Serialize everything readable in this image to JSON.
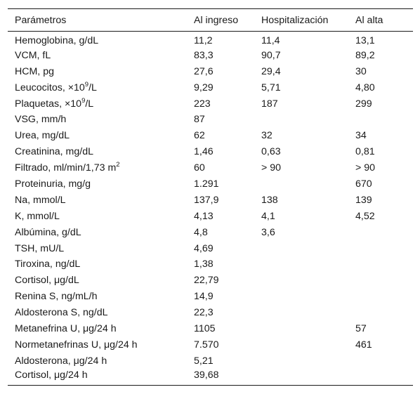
{
  "headers": [
    "Parámetros",
    "Al ingreso",
    "Hospitalización",
    "Al alta"
  ],
  "rows": [
    {
      "param": "Hemoglobina, g/dL",
      "ingreso": "11,2",
      "hosp": "11,4",
      "alta": "13,1"
    },
    {
      "param": "VCM, fL",
      "ingreso": "83,3",
      "hosp": "90,7",
      "alta": "89,2"
    },
    {
      "param": "HCM, pg",
      "ingreso": "27,6",
      "hosp": "29,4",
      "alta": "30"
    },
    {
      "param_pre": "Leucocitos, ×10",
      "param_sup": "9",
      "param_post": "/L",
      "ingreso": "9,29",
      "hosp": "5,71",
      "alta": "4,80"
    },
    {
      "param_pre": "Plaquetas, ×10",
      "param_sup": "9",
      "param_post": "/L",
      "ingreso": "223",
      "hosp": "187",
      "alta": "299"
    },
    {
      "param": "VSG, mm/h",
      "ingreso": "87",
      "hosp": "",
      "alta": ""
    },
    {
      "param": "Urea, mg/dL",
      "ingreso": "62",
      "hosp": "32",
      "alta": "34"
    },
    {
      "param": "Creatinina, mg/dL",
      "ingreso": "1,46",
      "hosp": "0,63",
      "alta": "0,81"
    },
    {
      "param_pre": "Filtrado, ml/min/1,73     m",
      "param_sup": "2",
      "param_post": "",
      "ingreso": "60",
      "hosp": ">    90",
      "alta": ">    90"
    },
    {
      "param": "Proteinuria, mg/g",
      "ingreso": "1.291",
      "hosp": "",
      "alta": "670"
    },
    {
      "param": "Na, mmol/L",
      "ingreso": "137,9",
      "hosp": "138",
      "alta": "139"
    },
    {
      "param": "K, mmol/L",
      "ingreso": "4,13",
      "hosp": "4,1",
      "alta": "4,52"
    },
    {
      "param": "Albúmina, g/dL",
      "ingreso": "4,8",
      "hosp": "3,6",
      "alta": ""
    },
    {
      "param": "TSH, mU/L",
      "ingreso": "4,69",
      "hosp": "",
      "alta": ""
    },
    {
      "param": "Tiroxina, ng/dL",
      "ingreso": "1,38",
      "hosp": "",
      "alta": ""
    },
    {
      "param": "Cortisol, μg/dL",
      "ingreso": "22,79",
      "hosp": "",
      "alta": ""
    },
    {
      "param": "Renina S, ng/mL/h",
      "ingreso": "14,9",
      "hosp": "",
      "alta": ""
    },
    {
      "param": "Aldosterona S, ng/dL",
      "ingreso": "22,3",
      "hosp": "",
      "alta": ""
    },
    {
      "param": "Metanefrina U, μg/24     h",
      "ingreso": "1105",
      "hosp": "",
      "alta": "57"
    },
    {
      "param": "Normetanefrinas U, μg/24     h",
      "ingreso": "7.570",
      "hosp": "",
      "alta": "461"
    },
    {
      "param": "Aldosterona, μg/24     h",
      "ingreso": "5,21",
      "hosp": "",
      "alta": ""
    },
    {
      "param": "Cortisol, μg/24     h",
      "ingreso": "39,68",
      "hosp": "",
      "alta": ""
    }
  ]
}
